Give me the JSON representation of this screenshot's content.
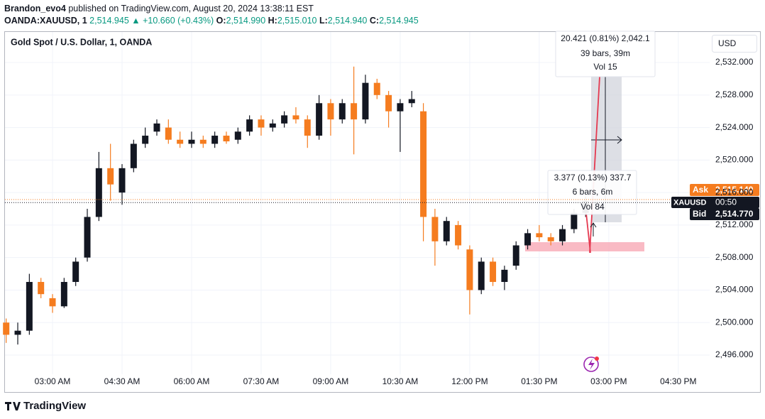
{
  "header": {
    "author": "Brandon_evo4",
    "byline": "published on TradingView.com, August 20, 2024 13:38:11 EST",
    "symbol": "OANDA:XAUUSD, 1",
    "price": "2,514.945",
    "change": "▲ +10.660 (+0.43%)",
    "ohlc": [
      {
        "key": "O:",
        "value": "2,514.990"
      },
      {
        "key": "H:",
        "value": "2,515.010"
      },
      {
        "key": "L:",
        "value": "2,514.940"
      },
      {
        "key": "C:",
        "value": "2,514.945"
      }
    ]
  },
  "toolbar": {
    "currency": "USD"
  },
  "footer": {
    "brand": "TradingView"
  },
  "measurements": [
    {
      "change": "20.421 (0.81%) 2,042.1",
      "bars": "39 bars, 39m",
      "volume": "Vol 15"
    },
    {
      "change": "3.377 (0.13%) 337.7",
      "bars": "6 bars, 6m",
      "volume": "Vol 84"
    }
  ],
  "chart_data": {
    "type": "candlestick",
    "title": "Gold Spot / U.S. Dollar, 1, OANDA",
    "categories": [
      null,
      null,
      null,
      null,
      "03:00 AM",
      null,
      null,
      null,
      null,
      null,
      "04:30 AM",
      null,
      null,
      null,
      null,
      null,
      "06:00 AM",
      null,
      null,
      null,
      null,
      null,
      "07:30 AM",
      null,
      null,
      null,
      null,
      null,
      "09:00 AM",
      null,
      null,
      null,
      null,
      null,
      "10:30 AM",
      null,
      null,
      null,
      null,
      null,
      "12:00 PM",
      null,
      null,
      null,
      null,
      null,
      "01:30 PM",
      null,
      null,
      null,
      null,
      null,
      "03:00 PM",
      null,
      null,
      null,
      null,
      null,
      "04:30 PM",
      null,
      null
    ],
    "open": [
      2500,
      2498.5,
      2499,
      2505,
      2503,
      2502,
      2505,
      2508,
      2513,
      2519,
      2516,
      2519,
      2522,
      2523.5,
      2524,
      2522.5,
      2522,
      2522.5,
      2522,
      2523,
      2522.5,
      2523.5,
      2525,
      2524,
      2524.5,
      2525.5,
      2525,
      2523,
      2527,
      2525,
      2527,
      2525,
      2529.5,
      2528,
      2526,
      2527,
      2526,
      2513,
      2510,
      2512,
      2509,
      2504,
      2507.5,
      2505,
      2507,
      2509.5,
      2511,
      2510.5,
      2510,
      2511.5,
      2513.5,
      null,
      null,
      null,
      null,
      null,
      null,
      null,
      null,
      null,
      null
    ],
    "high": [
      2500.5,
      2500,
      2506,
      2505.5,
      2503.5,
      2505.5,
      2508,
      2514,
      2521,
      2522,
      2519.5,
      2522.5,
      2524,
      2525,
      2525,
      2523.5,
      2523.5,
      2523,
      2523.5,
      2523.5,
      2524,
      2525.5,
      2525.5,
      2525,
      2526,
      2526.5,
      2525.5,
      2528,
      2527.5,
      2527.5,
      2531.5,
      2530.5,
      2530,
      2528.5,
      2527.5,
      2528.5,
      2527,
      2514,
      2513,
      2512.5,
      2509.5,
      2508,
      2508,
      2507,
      2510,
      2511.5,
      2512,
      2511,
      2512,
      2514,
      2515.5,
      null,
      null,
      null,
      null,
      null,
      null,
      null,
      null,
      null,
      null
    ],
    "low": [
      2497.5,
      2497.3,
      2498.5,
      2503,
      2501.2,
      2501.8,
      2504.5,
      2507.5,
      2512.5,
      2515,
      2514.5,
      2518.5,
      2521.5,
      2523,
      2522,
      2521.5,
      2521.5,
      2521.5,
      2521.5,
      2522,
      2522,
      2523,
      2523,
      2523.5,
      2524,
      2524.5,
      2521.5,
      2522.5,
      2523,
      2524.5,
      2520.7,
      2524.5,
      2527.5,
      2524,
      2521,
      2526.5,
      2510,
      2507,
      2509.5,
      2509,
      2501,
      2503.5,
      2504.5,
      2504,
      2506.5,
      2509,
      2510,
      2509.5,
      2509.5,
      2511,
      2513,
      null,
      null,
      null,
      null,
      null,
      null,
      null,
      null,
      null,
      null
    ],
    "close": [
      2498.5,
      2499,
      2505,
      2503.5,
      2502,
      2505,
      2507.5,
      2513,
      2519,
      2517,
      2519,
      2522,
      2523,
      2524.5,
      2522.5,
      2522,
      2522.5,
      2522,
      2523,
      2522.3,
      2523.5,
      2525,
      2524,
      2524.5,
      2525.5,
      2525,
      2523,
      2527,
      2525,
      2527,
      2525,
      2529.5,
      2528,
      2526,
      2527,
      2527.5,
      2513,
      2510,
      2512.5,
      2509.5,
      2504,
      2507.5,
      2505,
      2506.5,
      2509.5,
      2511,
      2510.5,
      2510,
      2511.5,
      2513.5,
      2514.945,
      null,
      null,
      null,
      null,
      null,
      null,
      null,
      null,
      null,
      null
    ],
    "up_color": "#131722",
    "down_color": "#f57c1f",
    "ylim": [
      2493.64,
      2535.85
    ],
    "yticks": [
      {
        "value": 2496,
        "label": "2,496.000"
      },
      {
        "value": 2500,
        "label": "2,500.000"
      },
      {
        "value": 2504,
        "label": "2,504.000"
      },
      {
        "value": 2508,
        "label": "2,508.000"
      },
      {
        "value": 2512,
        "label": "2,512.000"
      },
      {
        "value": 2516,
        "label": "2,516.000"
      },
      {
        "value": 2520,
        "label": "2,520.000"
      },
      {
        "value": 2524,
        "label": "2,524.000"
      },
      {
        "value": 2528,
        "label": "2,528.000"
      },
      {
        "value": 2532,
        "label": "2,532.000"
      }
    ],
    "grid": true,
    "ask": {
      "label": "Ask",
      "value": 2515.14,
      "value_label": "2,515.140",
      "color": "#f57c1f"
    },
    "bid": {
      "label": "Bid",
      "value": 2514.77,
      "value_label": "2,514.770",
      "color": "#131722"
    },
    "last": {
      "label": "XAUUSD",
      "countdown": "00:50"
    }
  }
}
